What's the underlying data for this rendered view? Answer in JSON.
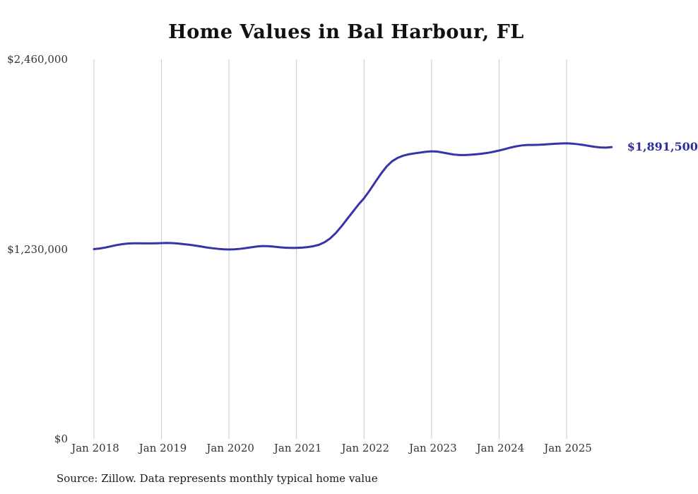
{
  "chart_data": {
    "type": "line",
    "title": "Home Values in Bal Harbour, FL",
    "source_note": "Source: Zillow. Data represents monthly typical home value",
    "end_label": "$1,891,500",
    "line_color": "#3734a8",
    "grid_color": "#c9c9c9",
    "ylim": [
      0,
      2460000
    ],
    "x_start": "2018-01",
    "x_end": "2025-09",
    "y_ticks": [
      {
        "label": "$0",
        "value": 0
      },
      {
        "label": "$1,230,000",
        "value": 1230000
      },
      {
        "label": "$2,460,000",
        "value": 2460000
      }
    ],
    "x_ticks": [
      {
        "label": "Jan 2018",
        "month_index": 0
      },
      {
        "label": "Jan 2019",
        "month_index": 12
      },
      {
        "label": "Jan 2020",
        "month_index": 24
      },
      {
        "label": "Jan 2021",
        "month_index": 36
      },
      {
        "label": "Jan 2022",
        "month_index": 48
      },
      {
        "label": "Jan 2023",
        "month_index": 60
      },
      {
        "label": "Jan 2024",
        "month_index": 72
      },
      {
        "label": "Jan 2025",
        "month_index": 84
      }
    ],
    "values": [
      1230000,
      1234000,
      1240000,
      1248000,
      1256000,
      1262000,
      1266000,
      1268000,
      1268000,
      1267000,
      1267000,
      1268000,
      1269000,
      1270000,
      1269000,
      1266000,
      1262000,
      1258000,
      1253000,
      1247000,
      1241000,
      1236000,
      1232000,
      1229000,
      1228000,
      1229000,
      1232000,
      1237000,
      1242000,
      1247000,
      1250000,
      1249000,
      1246000,
      1242000,
      1239000,
      1238000,
      1238000,
      1240000,
      1243000,
      1249000,
      1258000,
      1275000,
      1300000,
      1335000,
      1378000,
      1425000,
      1472000,
      1518000,
      1560000,
      1610000,
      1665000,
      1718000,
      1765000,
      1800000,
      1822000,
      1836000,
      1845000,
      1851000,
      1856000,
      1861000,
      1864000,
      1862000,
      1856000,
      1849000,
      1843000,
      1840000,
      1840000,
      1842000,
      1845000,
      1849000,
      1854000,
      1861000,
      1869000,
      1878000,
      1888000,
      1896000,
      1902000,
      1905000,
      1905000,
      1906000,
      1908000,
      1911000,
      1913000,
      1915000,
      1916000,
      1914000,
      1910000,
      1905000,
      1899000,
      1893000,
      1889000,
      1888000,
      1891500
    ]
  }
}
